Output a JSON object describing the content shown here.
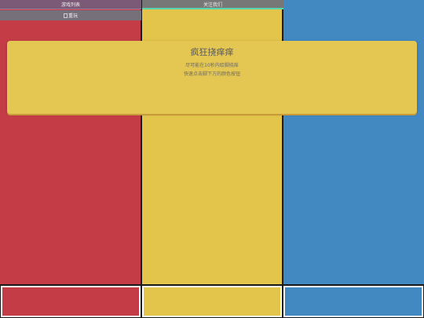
{
  "nav": {
    "games_label": "游戏列表",
    "follow_label": "关注我们",
    "restart_label": "重玩"
  },
  "modal": {
    "title": "疯狂挠痒痒",
    "line1": "尽可能在10秒内给脚挠痒",
    "line2": "快速点击脚下方的颜色按钮"
  },
  "colors": {
    "red": "#c43d46",
    "yellow": "#e3c54b",
    "blue": "#4289c2"
  }
}
